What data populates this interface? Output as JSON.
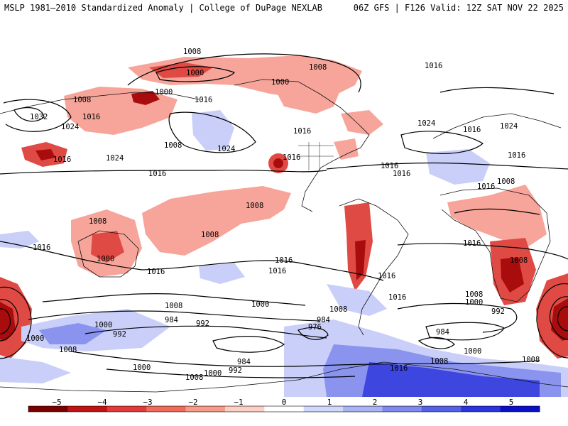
{
  "header": {
    "title_left": "MSLP 1981–2010 Standardized Anomaly | College of DuPage NEXLAB",
    "title_right": "06Z GFS | F126 Valid: 12Z SAT NOV 22 2025"
  },
  "isobar_labels": [
    "1008",
    "1000",
    "1016",
    "1000",
    "1008",
    "1016",
    "1032",
    "1024",
    "1024",
    "1016",
    "1024",
    "1016",
    "1016",
    "1000",
    "1016",
    "1024",
    "1016",
    "1016",
    "1016",
    "1008",
    "1008",
    "1008",
    "1008",
    "1008",
    "1008",
    "1016",
    "1016",
    "1016",
    "1016",
    "1016",
    "1008",
    "1000",
    "984",
    "992",
    "1000",
    "992",
    "1000",
    "1008",
    "984",
    "976",
    "1008",
    "1000",
    "992",
    "984",
    "1008",
    "1000",
    "992",
    "984",
    "1000",
    "1008",
    "1016",
    "1016",
    "1008",
    "1000",
    "1008",
    "1016",
    "1016",
    "1024",
    "1016",
    "1016",
    "1008",
    "1000"
  ],
  "colorbar": {
    "ticks": [
      "−5",
      "−4",
      "−3",
      "−2",
      "−1",
      "0",
      "1",
      "2",
      "3",
      "4",
      "5"
    ],
    "colors": [
      "#7a0000",
      "#c21313",
      "#e23a3a",
      "#f16a5a",
      "#f79a88",
      "#fccfc3",
      "#ffffff",
      "#d2d8fb",
      "#a9b3f5",
      "#7f89ee",
      "#5560e8",
      "#2b34dd",
      "#0a0fc9"
    ]
  },
  "anomaly_colors": {
    "neg_strong": "#a80c0c",
    "neg_mid": "#e04a44",
    "neg_light": "#f7a59a",
    "pos_light": "#c9cff8",
    "pos_mid": "#8a94ef",
    "pos_strong": "#3d46de"
  }
}
